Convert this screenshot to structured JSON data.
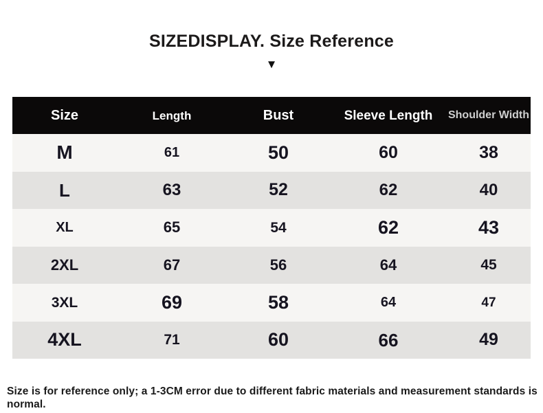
{
  "title": "SIZEDISPLAY. Size Reference",
  "arrow_icon": "▼",
  "table": {
    "headers": [
      "Size",
      "Length",
      "Bust",
      "Sleeve Length",
      "Shoulder Width"
    ],
    "rows": [
      [
        "M",
        "61",
        "50",
        "60",
        "38"
      ],
      [
        "L",
        "63",
        "52",
        "62",
        "40"
      ],
      [
        "XL",
        "65",
        "54",
        "62",
        "43"
      ],
      [
        "2XL",
        "67",
        "56",
        "64",
        "45"
      ],
      [
        "3XL",
        "69",
        "58",
        "64",
        "47"
      ],
      [
        "4XL",
        "71",
        "60",
        "66",
        "49"
      ]
    ]
  },
  "footnote": "Size is for reference only; a 1-3CM error due to different fabric materials and measurement standards is normal.",
  "colors": {
    "header_bg": "#0b0909",
    "header_text": "#ffffff",
    "header_text_dim": "#cfcfcf",
    "row_light": "#f6f5f3",
    "row_dark": "#e3e2e0",
    "text": "#161420"
  },
  "chart_data": {
    "type": "table",
    "title": "SIZEDISPLAY. Size Reference",
    "columns": [
      "Size",
      "Length",
      "Bust",
      "Sleeve Length",
      "Shoulder Width"
    ],
    "rows": [
      [
        "M",
        61,
        50,
        60,
        38
      ],
      [
        "L",
        63,
        52,
        62,
        40
      ],
      [
        "XL",
        65,
        54,
        62,
        43
      ],
      [
        "2XL",
        67,
        56,
        64,
        45
      ],
      [
        "3XL",
        69,
        58,
        64,
        47
      ],
      [
        "4XL",
        71,
        60,
        66,
        49
      ]
    ]
  }
}
